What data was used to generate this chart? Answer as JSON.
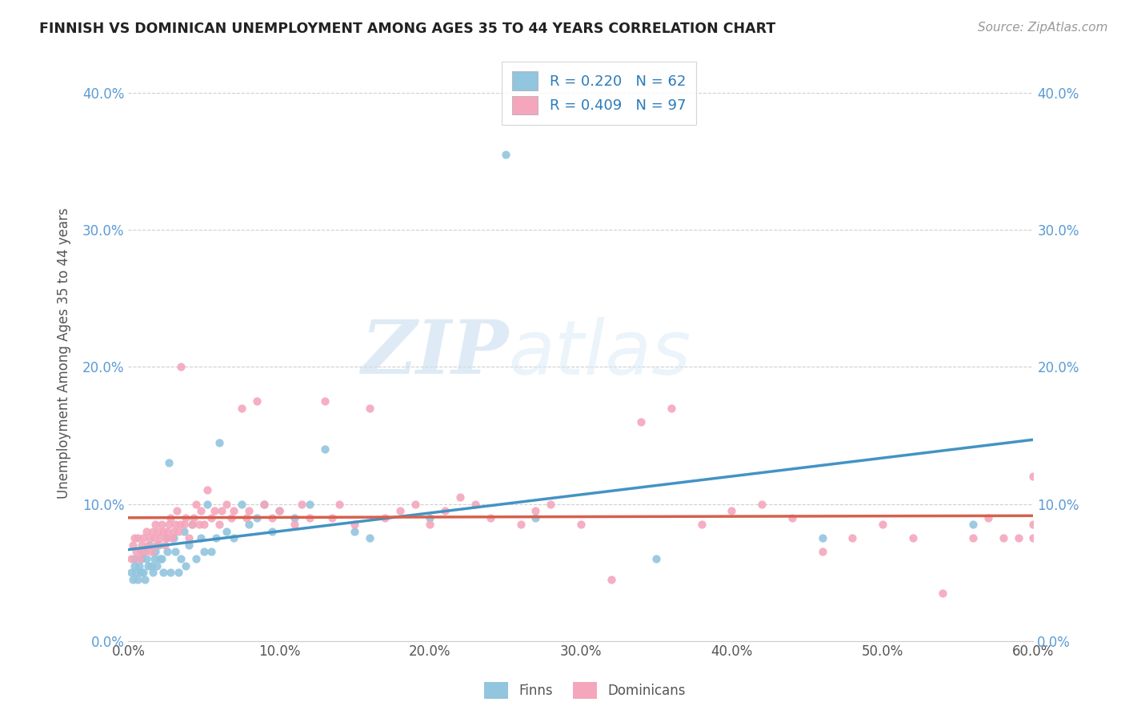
{
  "title": "FINNISH VS DOMINICAN UNEMPLOYMENT AMONG AGES 35 TO 44 YEARS CORRELATION CHART",
  "source": "Source: ZipAtlas.com",
  "ylabel": "Unemployment Among Ages 35 to 44 years",
  "xlim": [
    0.0,
    0.6
  ],
  "ylim": [
    0.0,
    0.42
  ],
  "finns_color": "#92c5de",
  "dominicans_color": "#f4a6bc",
  "finns_line_color": "#4393c3",
  "dominicans_line_color": "#d6604d",
  "legend_finns_label": "R = 0.220   N = 62",
  "legend_dominicans_label": "R = 0.409   N = 97",
  "watermark_zip": "ZIP",
  "watermark_atlas": "atlas",
  "finns_x": [
    0.002,
    0.003,
    0.004,
    0.004,
    0.005,
    0.006,
    0.007,
    0.008,
    0.009,
    0.01,
    0.01,
    0.011,
    0.012,
    0.013,
    0.014,
    0.015,
    0.016,
    0.017,
    0.018,
    0.019,
    0.02,
    0.021,
    0.022,
    0.023,
    0.025,
    0.026,
    0.027,
    0.028,
    0.03,
    0.031,
    0.033,
    0.035,
    0.037,
    0.038,
    0.04,
    0.042,
    0.045,
    0.048,
    0.05,
    0.052,
    0.055,
    0.058,
    0.06,
    0.065,
    0.07,
    0.075,
    0.08,
    0.085,
    0.09,
    0.095,
    0.1,
    0.11,
    0.12,
    0.13,
    0.15,
    0.16,
    0.2,
    0.25,
    0.27,
    0.35,
    0.46,
    0.56
  ],
  "finns_y": [
    0.05,
    0.045,
    0.055,
    0.06,
    0.05,
    0.045,
    0.055,
    0.05,
    0.06,
    0.05,
    0.065,
    0.045,
    0.06,
    0.055,
    0.07,
    0.055,
    0.05,
    0.06,
    0.065,
    0.055,
    0.07,
    0.06,
    0.06,
    0.05,
    0.075,
    0.065,
    0.13,
    0.05,
    0.075,
    0.065,
    0.05,
    0.06,
    0.08,
    0.055,
    0.07,
    0.085,
    0.06,
    0.075,
    0.065,
    0.1,
    0.065,
    0.075,
    0.145,
    0.08,
    0.075,
    0.1,
    0.085,
    0.09,
    0.1,
    0.08,
    0.095,
    0.09,
    0.1,
    0.14,
    0.08,
    0.075,
    0.09,
    0.355,
    0.09,
    0.06,
    0.075,
    0.085
  ],
  "dominicans_x": [
    0.002,
    0.003,
    0.004,
    0.005,
    0.006,
    0.007,
    0.008,
    0.009,
    0.01,
    0.011,
    0.012,
    0.013,
    0.014,
    0.015,
    0.016,
    0.017,
    0.018,
    0.019,
    0.02,
    0.021,
    0.022,
    0.023,
    0.024,
    0.025,
    0.026,
    0.027,
    0.028,
    0.029,
    0.03,
    0.031,
    0.032,
    0.033,
    0.034,
    0.035,
    0.037,
    0.038,
    0.04,
    0.042,
    0.043,
    0.045,
    0.047,
    0.048,
    0.05,
    0.052,
    0.055,
    0.057,
    0.06,
    0.062,
    0.065,
    0.068,
    0.07,
    0.075,
    0.078,
    0.08,
    0.085,
    0.09,
    0.095,
    0.1,
    0.11,
    0.115,
    0.12,
    0.13,
    0.135,
    0.14,
    0.15,
    0.16,
    0.17,
    0.18,
    0.19,
    0.2,
    0.21,
    0.22,
    0.23,
    0.24,
    0.26,
    0.27,
    0.28,
    0.3,
    0.32,
    0.34,
    0.36,
    0.38,
    0.4,
    0.42,
    0.44,
    0.46,
    0.48,
    0.5,
    0.52,
    0.54,
    0.56,
    0.57,
    0.58,
    0.59,
    0.6,
    0.6,
    0.6
  ],
  "dominicans_y": [
    0.06,
    0.07,
    0.075,
    0.065,
    0.075,
    0.06,
    0.065,
    0.07,
    0.075,
    0.065,
    0.08,
    0.07,
    0.075,
    0.065,
    0.08,
    0.075,
    0.085,
    0.07,
    0.08,
    0.075,
    0.085,
    0.08,
    0.07,
    0.075,
    0.08,
    0.085,
    0.09,
    0.075,
    0.08,
    0.085,
    0.095,
    0.08,
    0.085,
    0.2,
    0.085,
    0.09,
    0.075,
    0.085,
    0.09,
    0.1,
    0.085,
    0.095,
    0.085,
    0.11,
    0.09,
    0.095,
    0.085,
    0.095,
    0.1,
    0.09,
    0.095,
    0.17,
    0.09,
    0.095,
    0.175,
    0.1,
    0.09,
    0.095,
    0.085,
    0.1,
    0.09,
    0.175,
    0.09,
    0.1,
    0.085,
    0.17,
    0.09,
    0.095,
    0.1,
    0.085,
    0.095,
    0.105,
    0.1,
    0.09,
    0.085,
    0.095,
    0.1,
    0.085,
    0.045,
    0.16,
    0.17,
    0.085,
    0.095,
    0.1,
    0.09,
    0.065,
    0.075,
    0.085,
    0.075,
    0.035,
    0.075,
    0.09,
    0.075,
    0.075,
    0.12,
    0.075,
    0.085
  ]
}
